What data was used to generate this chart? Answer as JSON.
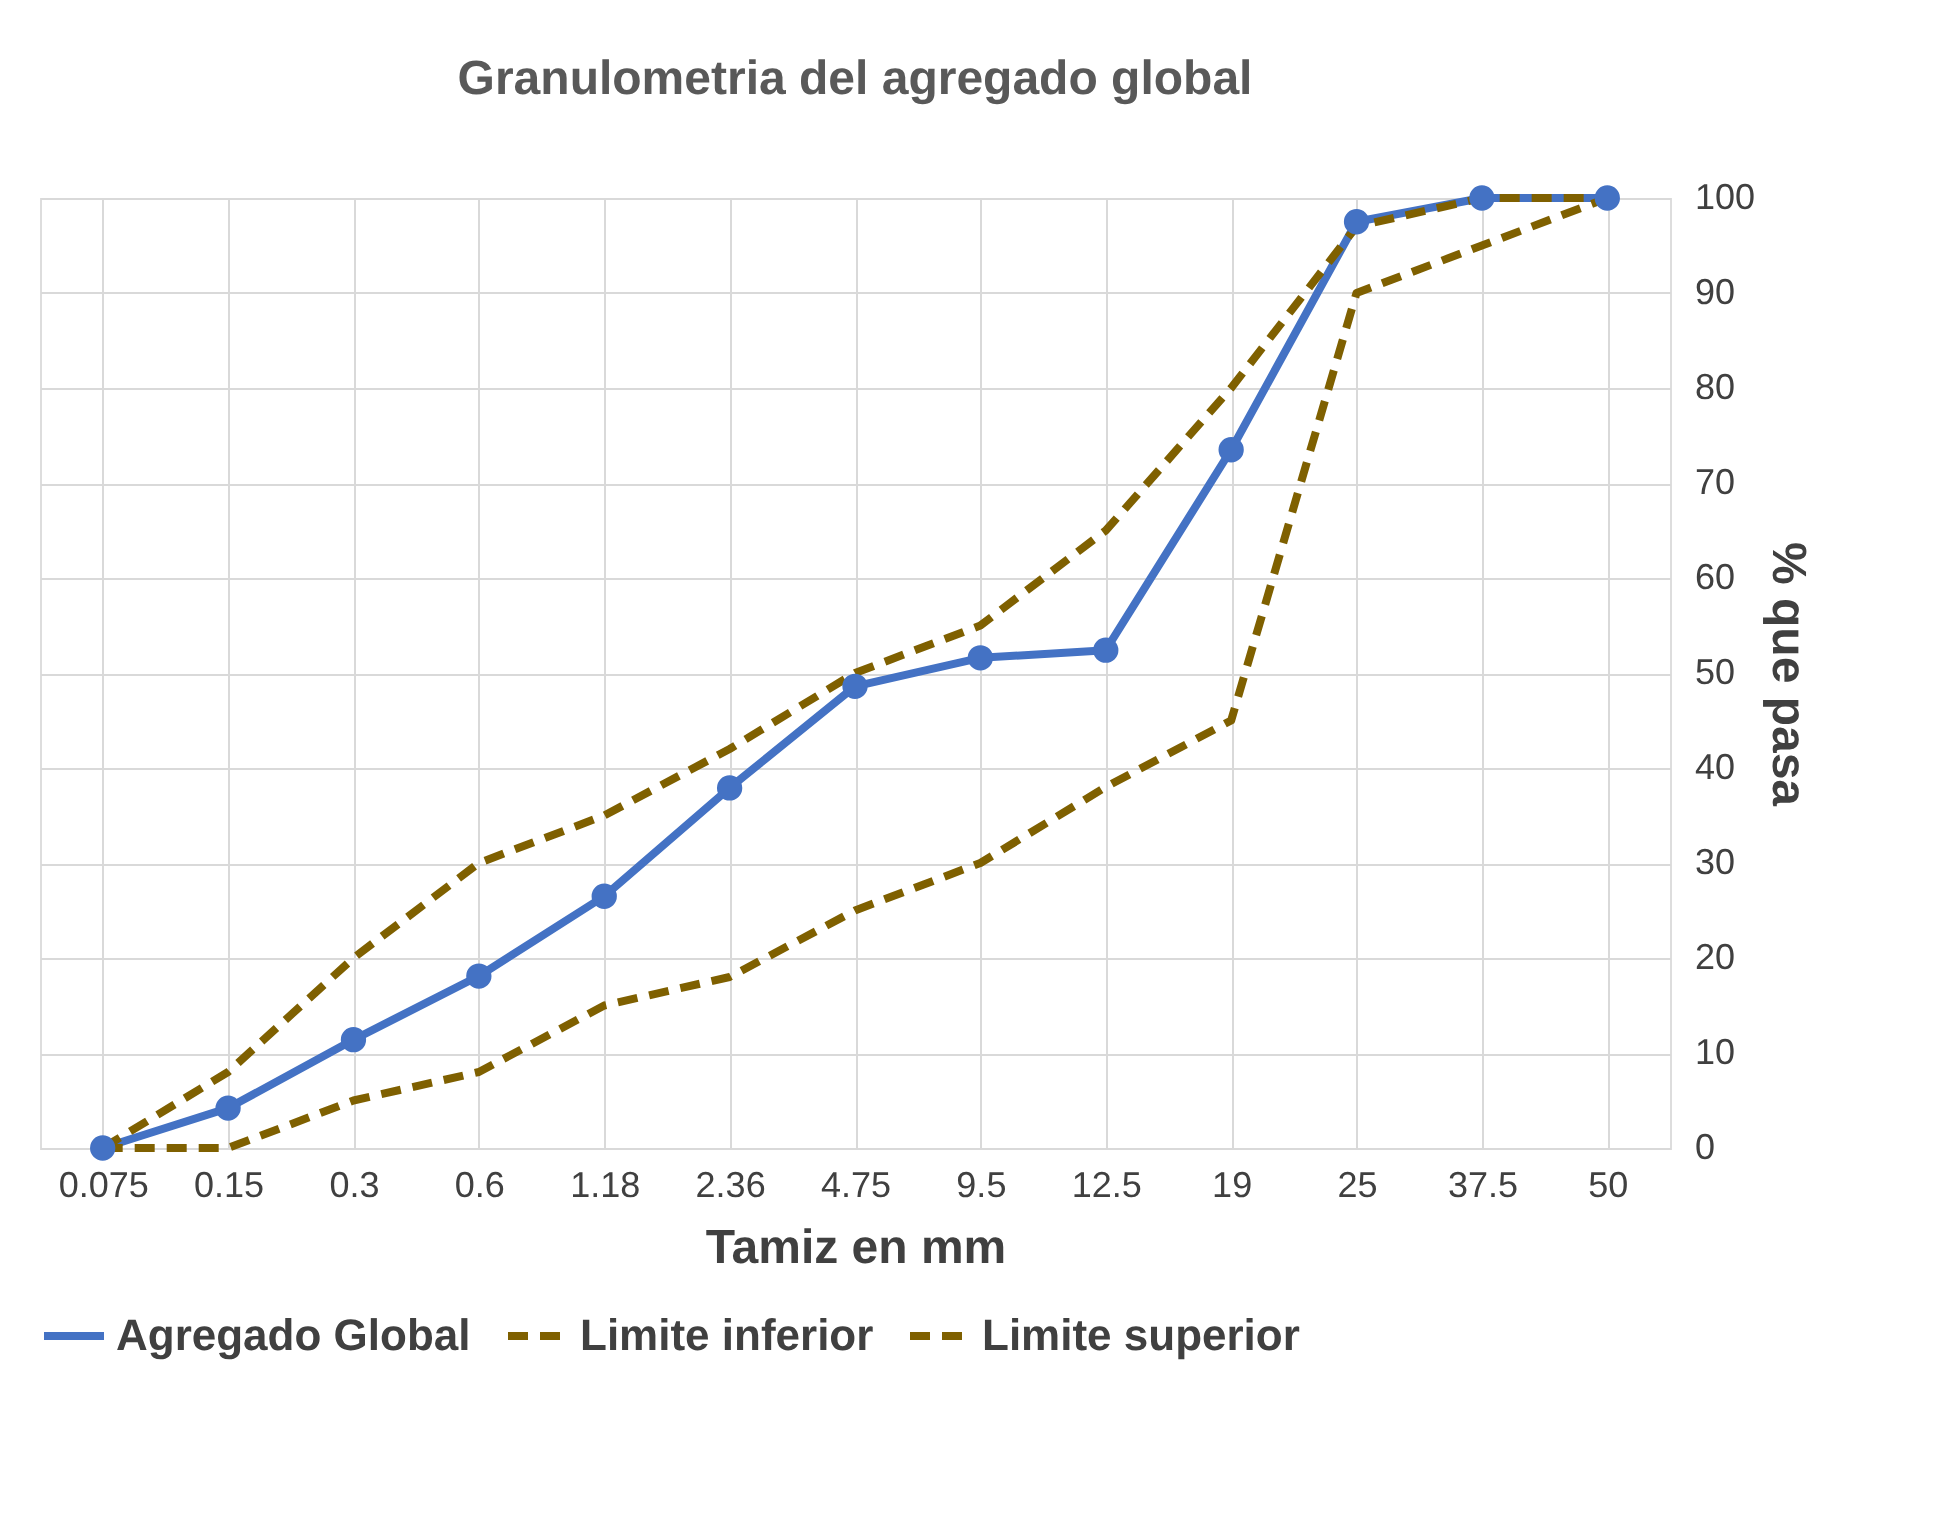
{
  "chart_data": {
    "type": "line",
    "title": "Granulometria del agregado global",
    "xlabel": "Tamiz en mm",
    "ylabel": "% que pasa",
    "categories": [
      "0.075",
      "0.15",
      "0.3",
      "0.6",
      "1.18",
      "2.36",
      "4.75",
      "9.5",
      "12.5",
      "19",
      "25",
      "37.5",
      "50"
    ],
    "ylim": [
      0,
      100
    ],
    "yticks": [
      0,
      10,
      20,
      30,
      40,
      50,
      60,
      70,
      80,
      90,
      100
    ],
    "grid": true,
    "legend": "bottom",
    "series": [
      {
        "name": "Agregado Global",
        "color": "#4472c4",
        "line_style": "solid",
        "marker": "circle",
        "values": [
          0,
          4.2,
          11.4,
          18.1,
          26.5,
          37.9,
          48.6,
          51.6,
          52.4,
          73.5,
          97.5,
          100,
          100
        ]
      },
      {
        "name": "Limite inferior",
        "color": "#7f6000",
        "line_style": "dashed",
        "marker": "none",
        "values": [
          0,
          0,
          5,
          8,
          15,
          18,
          25,
          30,
          38,
          45,
          90,
          95,
          100
        ]
      },
      {
        "name": "Limite superior",
        "color": "#7f6000",
        "line_style": "dashed",
        "marker": "none",
        "values": [
          0,
          8,
          20,
          30,
          35,
          42,
          50,
          55,
          65,
          80,
          97,
          100,
          100
        ]
      }
    ]
  }
}
